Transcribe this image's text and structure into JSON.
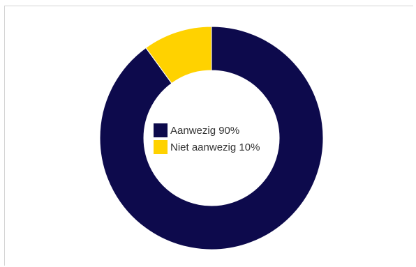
{
  "chart_data": {
    "type": "pie",
    "donut": true,
    "title": "",
    "slices": [
      {
        "label": "Aanwezig",
        "value": 90,
        "legend_text": "Aanwezig 90%",
        "color": "#0d0a4c"
      },
      {
        "label": "Niet aanwezig",
        "value": 10,
        "legend_text": "Niet aanwezig 10%",
        "color": "#ffd200"
      }
    ],
    "legend_placement": "center"
  }
}
